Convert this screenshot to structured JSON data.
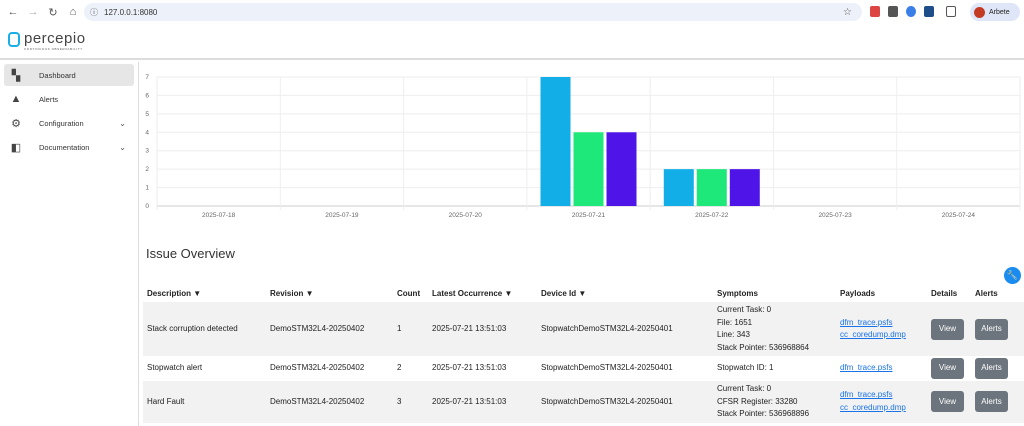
{
  "browser": {
    "url": "127.0.0.1:8080",
    "profile": "Arbete"
  },
  "logo": {
    "name": "percepio",
    "tagline": "CONTINUOUS OBSERVABILITY"
  },
  "sidebar": {
    "items": [
      {
        "label": "Dashboard",
        "icon": "dashboard-icon"
      },
      {
        "label": "Alerts",
        "icon": "warning-icon"
      },
      {
        "label": "Configuration",
        "icon": "gear-icon"
      },
      {
        "label": "Documentation",
        "icon": "book-icon"
      }
    ]
  },
  "chart_data": {
    "type": "bar",
    "categories": [
      "2025-07-18",
      "2025-07-19",
      "2025-07-20",
      "2025-07-21",
      "2025-07-22",
      "2025-07-23",
      "2025-07-24"
    ],
    "series": [
      {
        "name": "",
        "color": "#12aee8",
        "values": [
          0,
          0,
          0,
          7,
          2,
          0,
          0
        ]
      },
      {
        "name": "",
        "color": "#1ee87a",
        "values": [
          0,
          0,
          0,
          4,
          2,
          0,
          0
        ]
      },
      {
        "name": "",
        "color": "#4f14e8",
        "values": [
          0,
          0,
          0,
          4,
          2,
          0,
          0
        ]
      }
    ],
    "ylim": [
      0,
      7
    ],
    "yticks": [
      "0",
      "1",
      "2",
      "3",
      "4",
      "5",
      "6",
      "7"
    ],
    "grid": true,
    "title": "",
    "xlabel": "",
    "ylabel": ""
  },
  "issues": {
    "title": "Issue Overview",
    "headers": {
      "description": "Description",
      "revision": "Revision",
      "count": "Count",
      "latest": "Latest Occurrence",
      "device": "Device Id",
      "symptoms": "Symptoms",
      "payloads": "Payloads",
      "details": "Details",
      "alerts": "Alerts"
    },
    "sort_glyph": "▼",
    "view_label": "View",
    "alerts_label": "Alerts",
    "rows": [
      {
        "description": "Stack corruption detected",
        "revision": "DemoSTM32L4-20250402",
        "count": "1",
        "latest": "2025-07-21 13:51:03",
        "device": "StopwatchDemoSTM32L4-20250401",
        "symptoms": [
          "Current Task: 0",
          "File: 1651",
          "Line: 343",
          "Stack Pointer: 536968864"
        ],
        "payloads": [
          "dfm_trace.psfs",
          "cc_coredump.dmp"
        ]
      },
      {
        "description": "Stopwatch alert",
        "revision": "DemoSTM32L4-20250402",
        "count": "2",
        "latest": "2025-07-21 13:51:03",
        "device": "StopwatchDemoSTM32L4-20250401",
        "symptoms": [
          "Stopwatch ID: 1"
        ],
        "payloads": [
          "dfm_trace.psfs"
        ]
      },
      {
        "description": "Hard Fault",
        "revision": "DemoSTM32L4-20250402",
        "count": "3",
        "latest": "2025-07-21 13:51:03",
        "device": "StopwatchDemoSTM32L4-20250401",
        "symptoms": [
          "Current Task: 0",
          "CFSR Register: 33280",
          "Stack Pointer: 536968896"
        ],
        "payloads": [
          "dfm_trace.psfs",
          "cc_coredump.dmp"
        ]
      }
    ]
  }
}
